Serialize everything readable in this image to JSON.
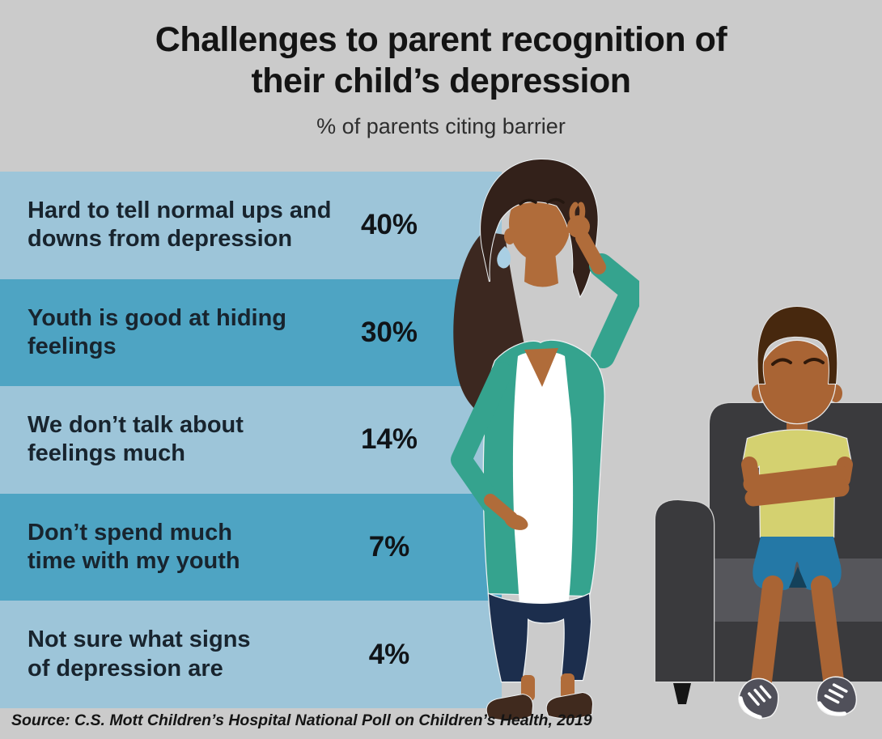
{
  "header": {
    "title_line1": "Challenges to parent recognition of",
    "title_line2": "their child’s depression",
    "subtitle": "% of parents citing barrier"
  },
  "chart_data": {
    "type": "bar",
    "orientation": "horizontal",
    "title": "Challenges to parent recognition of their child’s depression",
    "subtitle": "% of parents citing barrier",
    "unit": "%",
    "categories": [
      "Hard to tell normal ups and downs from depression",
      "Youth is good at hiding feelings",
      "We don’t talk about feelings much",
      "Don’t spend much time with my youth",
      "Not sure what signs of depression are"
    ],
    "label_lines": [
      [
        "Hard to tell normal ups and",
        "downs from depression"
      ],
      [
        "Youth is good at hiding",
        "feelings"
      ],
      [
        "We don’t talk about",
        "feelings much"
      ],
      [
        "Don’t spend much",
        "time with my youth"
      ],
      [
        "Not sure what signs",
        "of depression are"
      ]
    ],
    "values": [
      40,
      30,
      14,
      7,
      4
    ],
    "value_labels": [
      "40%",
      "30%",
      "14%",
      "7%",
      "4%"
    ],
    "row_colors_alternating": [
      "#9dc5d9",
      "#4ea4c3"
    ],
    "legend": "none",
    "grid": false,
    "xlim": [
      0,
      100
    ]
  },
  "footer": {
    "source": "Source: C.S. Mott Children’s Hospital National Poll on Children’s Health, 2019"
  },
  "illustrations": {
    "parent_figure": "thinking-mother-hand-on-head",
    "child_figure": "boy-sitting-on-couch-arms-crossed"
  },
  "colors": {
    "background": "#cbcbcb",
    "band_light": "#9dc5d9",
    "band_medium": "#4ea4c3",
    "text_dark": "#18242e",
    "cardigan_teal": "#35a38e",
    "pants_navy": "#1c2e4d",
    "skin_mother": "#b06c3a",
    "skin_boy": "#a96434",
    "shirt_boy": "#d4d170",
    "shorts_boy": "#2478a6",
    "couch": "#3a3a3d",
    "couch_cushion": "#56565b"
  }
}
